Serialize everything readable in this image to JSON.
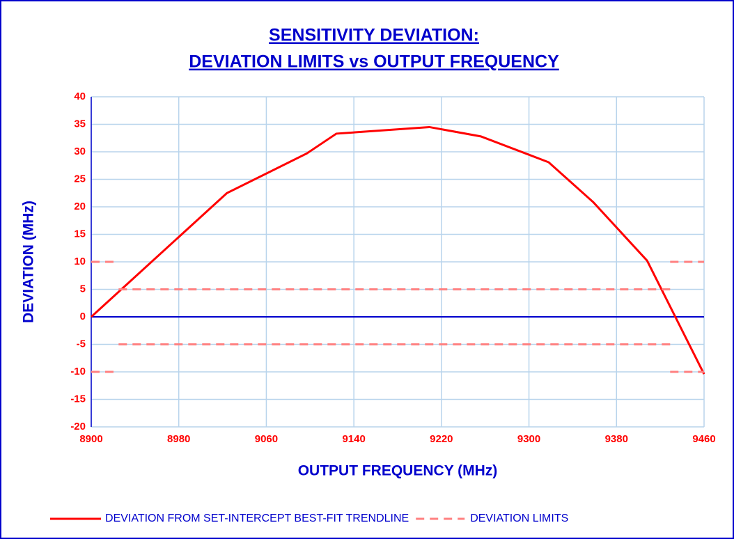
{
  "chart_data": {
    "type": "line",
    "title": [
      "SENSITIVITY DEVIATION:",
      "DEVIATION LIMITS vs OUTPUT FREQUENCY"
    ],
    "x_label": "OUTPUT FREQUENCY (MHz)",
    "y_label": "DEVIATION (MHz)",
    "xlim": [
      8900,
      9460
    ],
    "xticks": [
      8900,
      8980,
      9060,
      9140,
      9220,
      9300,
      9380,
      9460
    ],
    "ylim": [
      -20,
      40
    ],
    "yticks": [
      -20,
      -15,
      -10,
      -5,
      0,
      5,
      10,
      15,
      20,
      25,
      30,
      35,
      40
    ],
    "grid": true,
    "legend": "bottom",
    "series": [
      {
        "name": "DEVIATION FROM SET-INTERCEPT BEST-FIT TRENDLINE",
        "color": "#ff0000",
        "x": [
          8900,
          9024,
          9097,
          9124,
          9209,
          9256,
          9318,
          9359,
          9408,
          9460
        ],
        "values": [
          0,
          22.5,
          29.7,
          33.3,
          34.5,
          32.8,
          28.1,
          20.8,
          10.2,
          -10.4
        ]
      },
      {
        "name": "DEVIATION LIMITS",
        "color": "#ff8080",
        "dashed": true,
        "segments": [
          {
            "x": [
              8900,
              8925
            ],
            "values": [
              10,
              10
            ]
          },
          {
            "x": [
              9429,
              9460
            ],
            "values": [
              10,
              10
            ]
          },
          {
            "x": [
              8925,
              9429
            ],
            "values": [
              5,
              5
            ]
          },
          {
            "x": [
              8925,
              9429
            ],
            "values": [
              -5,
              -5
            ]
          },
          {
            "x": [
              8900,
              8925
            ],
            "values": [
              -10,
              -10
            ]
          },
          {
            "x": [
              9429,
              9460
            ],
            "values": [
              -10,
              -10
            ]
          }
        ]
      }
    ]
  }
}
